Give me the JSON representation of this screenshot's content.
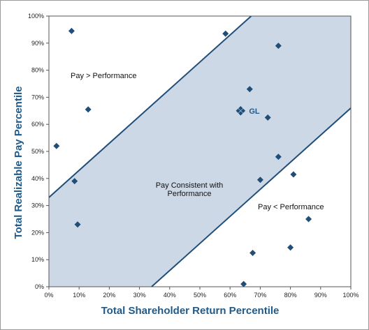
{
  "chart_data": {
    "type": "scatter",
    "xlabel": "Total Shareholder Return Percentile",
    "ylabel": "Total Realizable Pay Percentile",
    "xlim": [
      0,
      100
    ],
    "ylim": [
      0,
      100
    ],
    "x_ticks": [
      "0%",
      "10%",
      "20%",
      "30%",
      "40%",
      "50%",
      "60%",
      "70%",
      "80%",
      "90%",
      "100%"
    ],
    "y_ticks": [
      "0%",
      "10%",
      "20%",
      "30%",
      "40%",
      "50%",
      "60%",
      "70%",
      "80%",
      "90%",
      "100%"
    ],
    "grid": false,
    "band": {
      "upper_line": [
        [
          0,
          33
        ],
        [
          67,
          100
        ]
      ],
      "lower_line": [
        [
          34,
          0
        ],
        [
          100,
          66
        ]
      ],
      "fill": "#cdd8e6",
      "line_color": "#1f4e79"
    },
    "region_labels": {
      "above": "Pay  >  Performance",
      "band_line1": "Pay Consistent with",
      "band_line2": "Performance",
      "below": "Pay  <  Performance"
    },
    "highlight": {
      "label": "GL",
      "x": 63.5,
      "y": 65
    },
    "marker_color": "#1f4e79",
    "points": [
      [
        7.5,
        94.5
      ],
      [
        13,
        65.5
      ],
      [
        2.5,
        52
      ],
      [
        8.5,
        39
      ],
      [
        9.5,
        23
      ],
      [
        58.5,
        93.5
      ],
      [
        76,
        89
      ],
      [
        66.5,
        73
      ],
      [
        72.5,
        62.5
      ],
      [
        76,
        48
      ],
      [
        81,
        41.5
      ],
      [
        70,
        39.5
      ],
      [
        86,
        25
      ],
      [
        67.5,
        12.5
      ],
      [
        80,
        14.5
      ],
      [
        64.5,
        1
      ]
    ]
  }
}
